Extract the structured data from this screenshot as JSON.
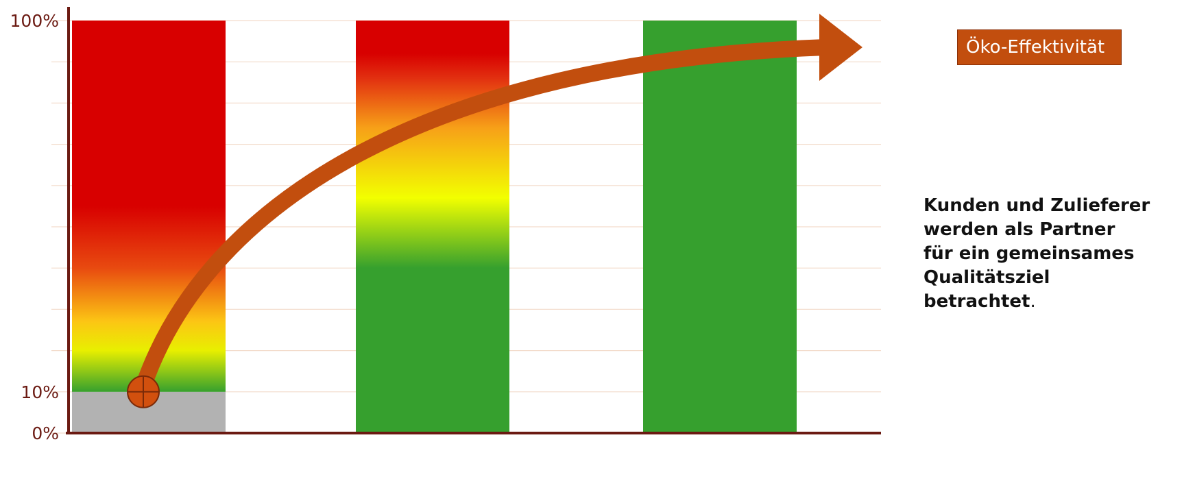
{
  "chart_data": {
    "type": "bar",
    "title": "",
    "xlabel": "",
    "ylabel": "",
    "ylim": [
      0,
      100
    ],
    "yticks": [
      {
        "value": 0,
        "label": "0%"
      },
      {
        "value": 10,
        "label": "10%"
      },
      {
        "value": 100,
        "label": "100%"
      }
    ],
    "grid": true,
    "categories": [
      "",
      "",
      ""
    ],
    "bars": [
      {
        "value": 100,
        "base_value": 10,
        "base_color": "#b2b2b2",
        "gradient": [
          {
            "at": 0,
            "color": "#36a02e"
          },
          {
            "at": 10,
            "color": "#36a02e"
          },
          {
            "at": 20,
            "color": "#e8ef00"
          },
          {
            "at": 27,
            "color": "#fcc614"
          },
          {
            "at": 40,
            "color": "#e84a10"
          },
          {
            "at": 55,
            "color": "#d80000"
          },
          {
            "at": 100,
            "color": "#d80000"
          }
        ]
      },
      {
        "value": 100,
        "base_value": 0,
        "gradient": [
          {
            "at": 0,
            "color": "#36a02e"
          },
          {
            "at": 40,
            "color": "#36a02e"
          },
          {
            "at": 57,
            "color": "#f2ff00"
          },
          {
            "at": 74,
            "color": "#f7a018"
          },
          {
            "at": 86,
            "color": "#e23010"
          },
          {
            "at": 92,
            "color": "#d80000"
          },
          {
            "at": 100,
            "color": "#d80000"
          }
        ]
      },
      {
        "value": 100,
        "base_value": 0,
        "gradient": [
          {
            "at": 0,
            "color": "#36a02e"
          },
          {
            "at": 100,
            "color": "#36a02e"
          }
        ]
      }
    ],
    "trend_arrow": {
      "label": "Öko-Effektivität",
      "start_value": 10,
      "color": "#c24e0e"
    }
  },
  "note": {
    "lines": [
      "Kunden und Zulieferer",
      "werden als Partner",
      "für ein gemeinsames",
      "Qualitätsziel",
      "betrachtet"
    ],
    "suffix": "."
  },
  "colors": {
    "axis": "#6b1a12",
    "gridline": "#f3dccc",
    "arrow": "#c24e0e",
    "marker_fill": "#d2500e",
    "marker_stroke": "#7a2a08"
  }
}
